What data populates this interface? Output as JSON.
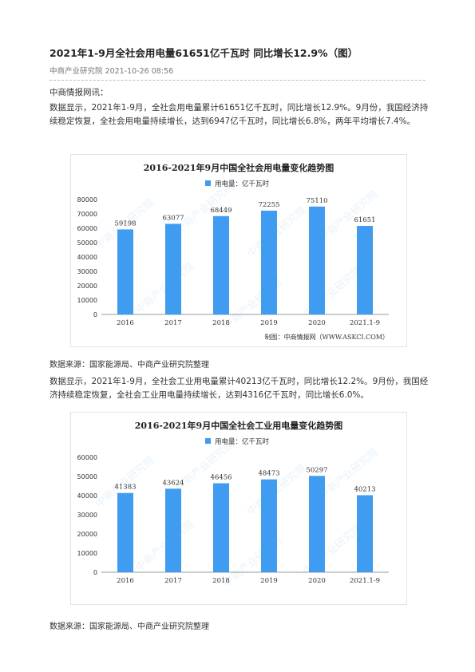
{
  "article": {
    "title": "2021年1-9月全社会用电量61651亿千瓦时 同比增长12.9%（图）",
    "meta": "中商产业研究院 2021-10-26 08:56",
    "intro": "中商情报网讯：",
    "para1": "数据显示，2021年1-9月，全社会用电量累计61651亿千瓦时，同比增长12.9%。9月份，我国经济持续稳定恢复，全社会用电量持续增长，达到6947亿千瓦时，同比增长6.8%，两年平均增长7.4%。",
    "source1": "数据来源：国家能源局、中商产业研究院整理",
    "para2": "数据显示，2021年1-9月，全社会工业用电量累计40213亿千瓦时，同比增长12.2%。9月份，我国经济持续稳定恢复，全社会工业用电量持续增长，达到4316亿千瓦时，同比增长6.0%。",
    "source2": "数据来源：国家能源局、中商产业研究院整理"
  },
  "colors": {
    "bar": "#3f9cf0",
    "axis": "#999999",
    "text": "#333333"
  },
  "chart_data": [
    {
      "type": "bar",
      "title": "2016-2021年9月中国全社会用电量变化趋势图",
      "legend": "用电量：亿千瓦时",
      "credit": "制图：中商情报网（WWW.ASKCI.COM）",
      "categories": [
        "2016",
        "2017",
        "2018",
        "2019",
        "2020",
        "2021.1-9"
      ],
      "values": [
        59198,
        63077,
        68449,
        72255,
        75110,
        61651
      ],
      "ylim": [
        0,
        80000
      ],
      "yticks": [
        0,
        10000,
        20000,
        30000,
        40000,
        50000,
        60000,
        70000,
        80000
      ],
      "grid": false,
      "legend_position": "top-center",
      "watermark": "中商产业研究院"
    },
    {
      "type": "bar",
      "title": "2016-2021年9月中国全社会工业用电量变化趋势图",
      "legend": "用电量：亿千瓦时",
      "credit": "",
      "categories": [
        "2016",
        "2017",
        "2018",
        "2019",
        "2020",
        "2021.1-9"
      ],
      "values": [
        41383,
        43624,
        46456,
        48473,
        50297,
        40213
      ],
      "ylim": [
        0,
        60000
      ],
      "yticks": [
        0,
        10000,
        20000,
        30000,
        40000,
        50000,
        60000
      ],
      "grid": false,
      "legend_position": "top-center",
      "watermark": "中商产业研究院"
    }
  ]
}
